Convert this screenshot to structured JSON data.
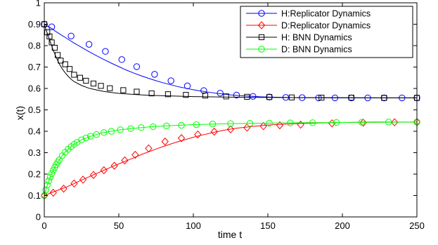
{
  "chart_data": {
    "type": "line",
    "title": "",
    "xlabel": "time t",
    "ylabel": "x(t)",
    "xlim": [
      0,
      250
    ],
    "ylim": [
      0,
      1
    ],
    "xticks": [
      "0",
      "50",
      "100",
      "150",
      "200",
      "250"
    ],
    "yticks": [
      "0",
      "0.1",
      "0.2",
      "0.3",
      "0.4",
      "0.5",
      "0.6",
      "0.7",
      "0.8",
      "0.9",
      "1"
    ],
    "grid": false,
    "legend_position": "top-right",
    "series": [
      {
        "name": "H:Replicator Dynamics",
        "color": "#0000ff",
        "marker": "circle",
        "x": [
          0,
          2.5,
          5,
          7.5,
          10,
          15,
          20,
          25,
          30,
          35,
          40,
          45,
          50,
          55,
          60,
          65,
          70,
          75,
          80,
          85,
          90,
          95,
          100,
          105,
          110,
          115,
          120,
          125,
          130,
          135,
          140,
          145,
          150,
          160,
          170,
          180,
          190,
          200,
          210,
          220,
          230,
          240,
          250
        ],
        "y": [
          0.9,
          0.89,
          0.88,
          0.867,
          0.856,
          0.834,
          0.812,
          0.792,
          0.772,
          0.753,
          0.735,
          0.718,
          0.702,
          0.686,
          0.672,
          0.659,
          0.647,
          0.636,
          0.626,
          0.617,
          0.608,
          0.601,
          0.594,
          0.588,
          0.583,
          0.578,
          0.574,
          0.57,
          0.567,
          0.565,
          0.563,
          0.561,
          0.56,
          0.558,
          0.557,
          0.557,
          0.556,
          0.556,
          0.556,
          0.556,
          0.556,
          0.556,
          0.556
        ],
        "marker_x": [
          0,
          5,
          18,
          30,
          41,
          52,
          62,
          74,
          85,
          96,
          107,
          118,
          129,
          140,
          151,
          162,
          173,
          184,
          195,
          206,
          217,
          228,
          240,
          250
        ],
        "marker_y": [
          0.9,
          0.888,
          0.845,
          0.806,
          0.773,
          0.735,
          0.702,
          0.666,
          0.636,
          0.612,
          0.59,
          0.578,
          0.569,
          0.563,
          0.56,
          0.558,
          0.557,
          0.556,
          0.556,
          0.556,
          0.556,
          0.556,
          0.556,
          0.556
        ]
      },
      {
        "name": "D:Replicator Dynamics",
        "color": "#ff0000",
        "marker": "diamond",
        "x": [
          0,
          2.5,
          5,
          7.5,
          10,
          15,
          20,
          25,
          30,
          35,
          40,
          45,
          50,
          55,
          60,
          65,
          70,
          75,
          80,
          85,
          90,
          95,
          100,
          105,
          110,
          115,
          120,
          125,
          130,
          135,
          140,
          145,
          150,
          160,
          170,
          180,
          190,
          200,
          210,
          220,
          230,
          240,
          250
        ],
        "y": [
          0.1,
          0.107,
          0.114,
          0.12,
          0.127,
          0.14,
          0.156,
          0.172,
          0.187,
          0.203,
          0.218,
          0.233,
          0.248,
          0.262,
          0.276,
          0.291,
          0.304,
          0.317,
          0.329,
          0.341,
          0.352,
          0.362,
          0.372,
          0.381,
          0.389,
          0.397,
          0.404,
          0.41,
          0.415,
          0.419,
          0.423,
          0.426,
          0.429,
          0.433,
          0.436,
          0.438,
          0.44,
          0.441,
          0.442,
          0.443,
          0.443,
          0.443,
          0.443
        ],
        "marker_x": [
          0,
          6,
          13,
          20,
          26,
          33,
          40,
          47,
          54,
          61,
          70,
          81,
          92,
          103,
          114,
          125,
          136,
          147,
          158,
          172,
          193,
          214,
          235,
          250
        ],
        "marker_y": [
          0.1,
          0.113,
          0.132,
          0.156,
          0.174,
          0.196,
          0.218,
          0.239,
          0.264,
          0.29,
          0.32,
          0.352,
          0.368,
          0.385,
          0.398,
          0.409,
          0.417,
          0.424,
          0.428,
          0.431,
          0.437,
          0.44,
          0.442,
          0.443
        ]
      },
      {
        "name": "H: BNN Dynamics",
        "color": "#000000",
        "marker": "square",
        "x": [
          0,
          1,
          2,
          3,
          4,
          5,
          6,
          7,
          8,
          10,
          12,
          14,
          16,
          18,
          20,
          25,
          30,
          35,
          40,
          45,
          50,
          60,
          70,
          80,
          90,
          100,
          110,
          120,
          130,
          140,
          150,
          175,
          200,
          225,
          250
        ],
        "y": [
          0.9,
          0.878,
          0.858,
          0.838,
          0.818,
          0.798,
          0.778,
          0.762,
          0.745,
          0.716,
          0.692,
          0.673,
          0.657,
          0.643,
          0.632,
          0.614,
          0.601,
          0.593,
          0.586,
          0.581,
          0.577,
          0.572,
          0.568,
          0.566,
          0.564,
          0.562,
          0.561,
          0.56,
          0.559,
          0.558,
          0.558,
          0.557,
          0.557,
          0.556,
          0.556
        ],
        "marker_x": [
          0,
          2,
          3.5,
          5,
          7,
          9,
          11,
          14,
          17,
          20,
          24,
          28,
          33,
          38,
          44,
          53,
          62,
          72,
          83,
          95,
          108,
          122,
          136,
          151,
          166,
          186,
          206,
          228,
          250
        ],
        "marker_y": [
          0.9,
          0.862,
          0.843,
          0.815,
          0.79,
          0.756,
          0.73,
          0.713,
          0.691,
          0.664,
          0.65,
          0.636,
          0.623,
          0.612,
          0.601,
          0.592,
          0.585,
          0.577,
          0.573,
          0.57,
          0.567,
          0.563,
          0.561,
          0.56,
          0.558,
          0.557,
          0.557,
          0.556,
          0.556
        ]
      },
      {
        "name": "D: BNN Dynamics",
        "color": "#00ff00",
        "marker": "circle",
        "x": [
          0,
          1,
          2,
          3,
          4,
          5,
          6,
          7,
          8,
          10,
          12,
          14,
          16,
          18,
          20,
          25,
          30,
          35,
          40,
          45,
          50,
          60,
          70,
          80,
          90,
          100,
          110,
          120,
          130,
          140,
          150,
          175,
          200,
          225,
          250
        ],
        "y": [
          0.1,
          0.126,
          0.148,
          0.168,
          0.186,
          0.202,
          0.217,
          0.231,
          0.244,
          0.266,
          0.286,
          0.302,
          0.316,
          0.328,
          0.339,
          0.36,
          0.374,
          0.385,
          0.394,
          0.4,
          0.406,
          0.414,
          0.42,
          0.425,
          0.428,
          0.431,
          0.433,
          0.435,
          0.436,
          0.437,
          0.438,
          0.44,
          0.441,
          0.442,
          0.443
        ],
        "marker_x": [
          0,
          1,
          2,
          3,
          4,
          5,
          6,
          7,
          8,
          9,
          10,
          12,
          14,
          16,
          18,
          20,
          22,
          25,
          28,
          31,
          35,
          40,
          45,
          51,
          58,
          65,
          73,
          82,
          92,
          102,
          113,
          125,
          138,
          151,
          165,
          180,
          196,
          213,
          231,
          250
        ],
        "marker_y": [
          0.1,
          0.126,
          0.148,
          0.168,
          0.186,
          0.202,
          0.217,
          0.231,
          0.244,
          0.256,
          0.266,
          0.286,
          0.302,
          0.316,
          0.328,
          0.339,
          0.348,
          0.36,
          0.369,
          0.377,
          0.385,
          0.394,
          0.4,
          0.407,
          0.412,
          0.417,
          0.421,
          0.425,
          0.428,
          0.431,
          0.434,
          0.436,
          0.437,
          0.438,
          0.439,
          0.44,
          0.441,
          0.442,
          0.443,
          0.443
        ]
      }
    ]
  }
}
